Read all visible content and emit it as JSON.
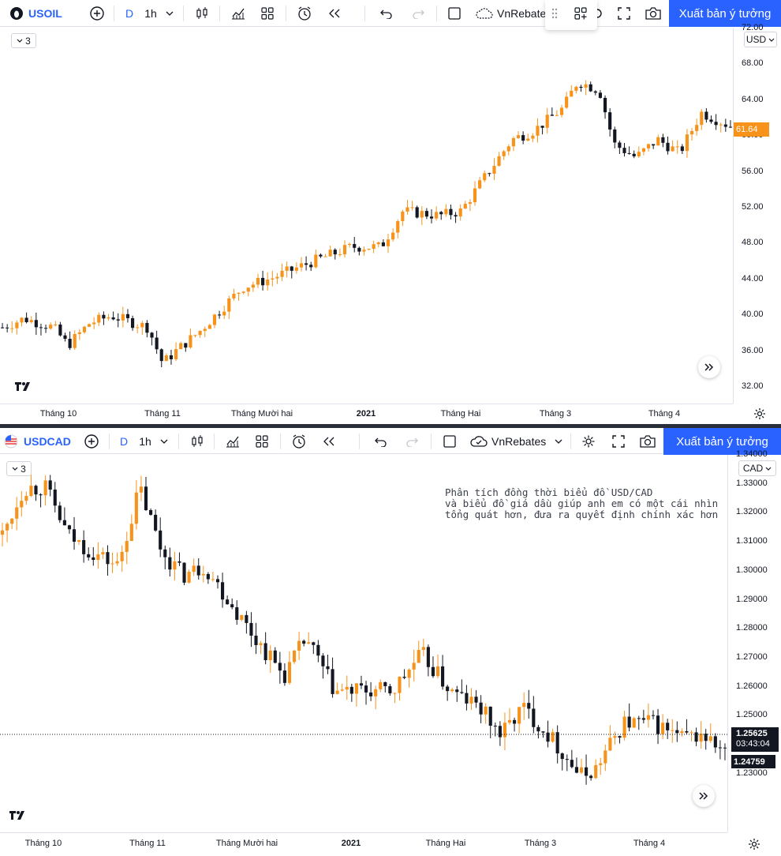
{
  "top": {
    "symbol": "USOIL",
    "interval_prefix": "D",
    "interval": "1h",
    "template_label": "VnRebate",
    "publish_label": "Xuất bản ý tưởng",
    "currency": "USD",
    "indicator_count": "3",
    "last_price": "61.64",
    "accent": "#f7931a",
    "y_ticks": [
      "72.00",
      "68.00",
      "64.00",
      "60.00",
      "56.00",
      "52.00",
      "48.00",
      "44.00",
      "40.00",
      "36.00",
      "32.00"
    ],
    "x_ticks": [
      {
        "label": "Tháng 10",
        "bold": false
      },
      {
        "label": "Tháng 11",
        "bold": false
      },
      {
        "label": "Tháng Mười hai",
        "bold": false
      },
      {
        "label": "2021",
        "bold": true
      },
      {
        "label": "Tháng Hai",
        "bold": false
      },
      {
        "label": "Tháng 3",
        "bold": false
      },
      {
        "label": "Tháng 4",
        "bold": false
      }
    ]
  },
  "bottom": {
    "symbol": "USDCAD",
    "interval_prefix": "D",
    "interval": "1h",
    "template_label": "VnRebates",
    "publish_label": "Xuất bản ý tưởng",
    "currency": "CAD",
    "indicator_count": "3",
    "price_line": "1.25625",
    "countdown": "03:43:04",
    "last_price": "1.24759",
    "note": "Phân tích đồng thời biểu đồ USD/CAD\nvà biểu đồ giá dầu giúp anh em có một cái nhìn\ntổng quát hơn, đưa ra quyết định chính xác hơn",
    "y_ticks": [
      "1.34000",
      "1.33000",
      "1.32000",
      "1.31000",
      "1.30000",
      "1.29000",
      "1.28000",
      "1.27000",
      "1.26000",
      "1.25000",
      "1.24000",
      "1.23000"
    ],
    "x_ticks": [
      {
        "label": "Tháng 10",
        "bold": false
      },
      {
        "label": "Tháng 11",
        "bold": false
      },
      {
        "label": "Tháng Mười hai",
        "bold": false
      },
      {
        "label": "2021",
        "bold": true
      },
      {
        "label": "Tháng Hai",
        "bold": false
      },
      {
        "label": "Tháng 3",
        "bold": false
      },
      {
        "label": "Tháng 4",
        "bold": false
      }
    ]
  },
  "chart_data": [
    {
      "type": "candlestick",
      "symbol": "USOIL",
      "ylim": [
        31,
        73
      ],
      "path": [
        [
          0,
          39.5
        ],
        [
          0.03,
          40.5
        ],
        [
          0.07,
          39.5
        ],
        [
          0.09,
          37.5
        ],
        [
          0.12,
          40
        ],
        [
          0.15,
          40.8
        ],
        [
          0.2,
          39.5
        ],
        [
          0.22,
          35.5
        ],
        [
          0.24,
          37
        ],
        [
          0.27,
          39
        ],
        [
          0.3,
          41.5
        ],
        [
          0.33,
          44
        ],
        [
          0.37,
          45
        ],
        [
          0.43,
          47
        ],
        [
          0.48,
          48.5
        ],
        [
          0.52,
          48.5
        ],
        [
          0.55,
          52.5
        ],
        [
          0.6,
          52
        ],
        [
          0.63,
          52.5
        ],
        [
          0.66,
          56
        ],
        [
          0.7,
          60.5
        ],
        [
          0.73,
          61.5
        ],
        [
          0.77,
          64
        ],
        [
          0.79,
          67
        ],
        [
          0.82,
          66
        ],
        [
          0.84,
          60
        ],
        [
          0.87,
          58.5
        ],
        [
          0.9,
          60.5
        ],
        [
          0.93,
          59
        ],
        [
          0.96,
          63.5
        ],
        [
          1,
          62
        ]
      ]
    },
    {
      "type": "candlestick",
      "symbol": "USDCAD",
      "ylim": [
        1.225,
        1.3455
      ],
      "path": [
        [
          0,
          1.32
        ],
        [
          0.03,
          1.335
        ],
        [
          0.06,
          1.335
        ],
        [
          0.09,
          1.32
        ],
        [
          0.12,
          1.315
        ],
        [
          0.16,
          1.31
        ],
        [
          0.19,
          1.335
        ],
        [
          0.22,
          1.315
        ],
        [
          0.25,
          1.307
        ],
        [
          0.28,
          1.31
        ],
        [
          0.31,
          1.3
        ],
        [
          0.35,
          1.287
        ],
        [
          0.39,
          1.275
        ],
        [
          0.42,
          1.287
        ],
        [
          0.46,
          1.27
        ],
        [
          0.5,
          1.27
        ],
        [
          0.54,
          1.27
        ],
        [
          0.58,
          1.282
        ],
        [
          0.62,
          1.27
        ],
        [
          0.66,
          1.265
        ],
        [
          0.69,
          1.256
        ],
        [
          0.72,
          1.265
        ],
        [
          0.76,
          1.255
        ],
        [
          0.8,
          1.243
        ],
        [
          0.82,
          1.245
        ],
        [
          0.86,
          1.26
        ],
        [
          0.9,
          1.26
        ],
        [
          0.94,
          1.255
        ],
        [
          0.97,
          1.256
        ],
        [
          1,
          1.25
        ]
      ]
    }
  ]
}
